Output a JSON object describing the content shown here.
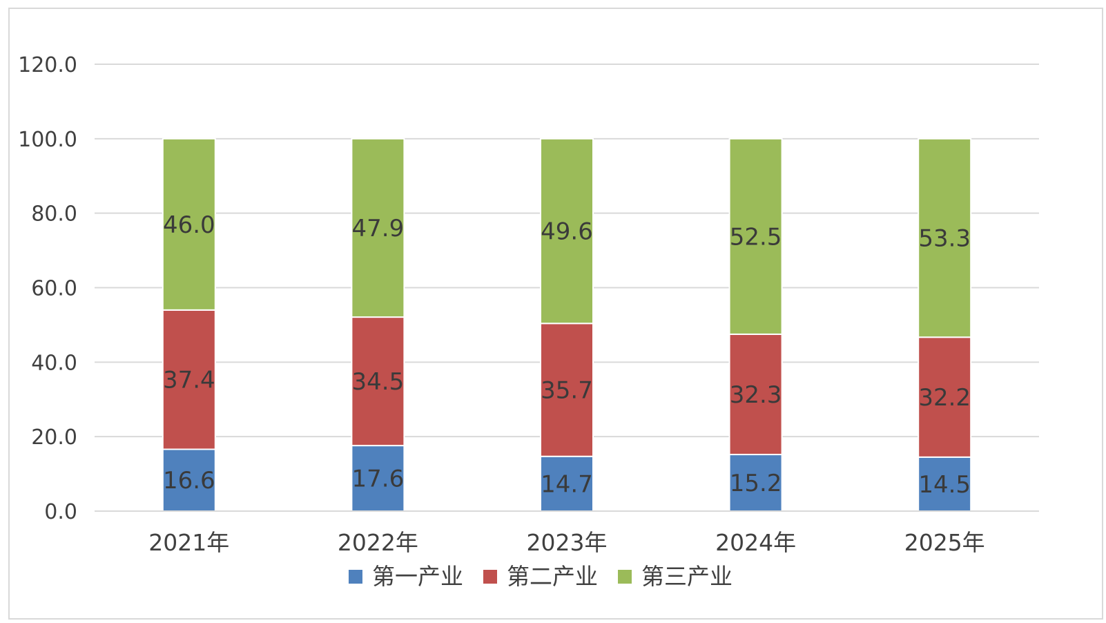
{
  "chart_data": {
    "type": "bar",
    "stacked": true,
    "categories": [
      "2021年",
      "2022年",
      "2023年",
      "2024年",
      "2025年"
    ],
    "series": [
      {
        "name": "第一产业",
        "color": "#4f81bd",
        "values": [
          16.6,
          17.6,
          14.7,
          15.2,
          14.5
        ]
      },
      {
        "name": "第二产业",
        "color": "#c0504d",
        "values": [
          37.4,
          34.5,
          35.7,
          32.3,
          32.2
        ]
      },
      {
        "name": "第三产业",
        "color": "#9bbb59",
        "values": [
          46.0,
          47.9,
          49.6,
          52.5,
          53.3
        ]
      }
    ],
    "ylim": [
      0,
      120
    ],
    "yticks": [
      "0.0",
      "20.0",
      "40.0",
      "60.0",
      "80.0",
      "100.0",
      "120.0"
    ],
    "grid": true,
    "legend_position": "bottom",
    "data_labels": true
  }
}
